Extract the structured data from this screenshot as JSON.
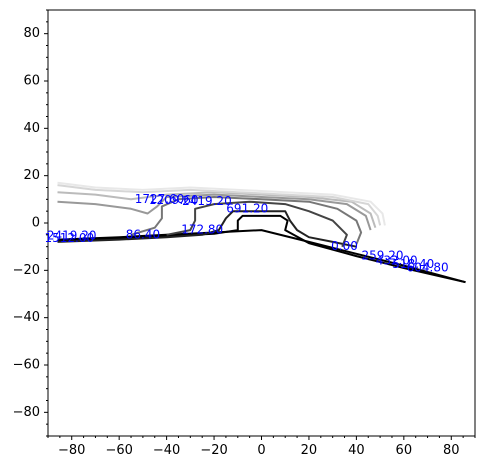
{
  "chart_data": {
    "type": "contour",
    "title": "",
    "xlabel": "",
    "ylabel": "",
    "xlim": [
      -90,
      90
    ],
    "ylim": [
      -90,
      90
    ],
    "grid": false,
    "x_ticks": [
      "−80",
      "−60",
      "−40",
      "−20",
      "0",
      "20",
      "40",
      "60",
      "80"
    ],
    "y_ticks": [
      "80",
      "60",
      "40",
      "20",
      "0",
      "−20",
      "−40",
      "−60",
      "−80"
    ],
    "x_tick_values": [
      -80,
      -60,
      -40,
      -20,
      0,
      20,
      40,
      60,
      80
    ],
    "y_tick_values": [
      80,
      60,
      40,
      20,
      0,
      -20,
      -40,
      -60,
      -80
    ],
    "contour_colors": [
      "#000000",
      "#222222",
      "#444444",
      "#777777",
      "#999999",
      "#bbbbbb",
      "#d6d6d6",
      "#e8e8e8"
    ],
    "contours": [
      {
        "color": "#000000",
        "points": [
          [
            -86,
            -7
          ],
          [
            -60,
            -6
          ],
          [
            -40,
            -5
          ],
          [
            -20,
            -4
          ],
          [
            0,
            -3
          ],
          [
            20,
            -8
          ],
          [
            40,
            -13
          ],
          [
            60,
            -18
          ],
          [
            86,
            -25
          ]
        ]
      },
      {
        "color": "#000000",
        "points": [
          [
            -86,
            -7.5
          ],
          [
            -60,
            -6.5
          ],
          [
            -40,
            -5.5
          ],
          [
            -20,
            -4.5
          ],
          [
            -10,
            -3
          ],
          [
            -10,
            1
          ],
          [
            -8,
            3
          ],
          [
            0,
            3
          ],
          [
            8,
            3
          ],
          [
            11,
            1
          ],
          [
            10,
            -3
          ],
          [
            20,
            -8.5
          ],
          [
            40,
            -14
          ],
          [
            60,
            -19
          ],
          [
            86,
            -25
          ]
        ]
      },
      {
        "color": "#222222",
        "points": [
          [
            -86,
            -8
          ],
          [
            -60,
            -7
          ],
          [
            -40,
            -6
          ],
          [
            -25,
            -5
          ],
          [
            -18,
            -3
          ],
          [
            -15,
            2
          ],
          [
            -12,
            5
          ],
          [
            0,
            5
          ],
          [
            10,
            5
          ],
          [
            12,
            1
          ],
          [
            15,
            -3
          ],
          [
            20,
            -6
          ],
          [
            30,
            -8
          ],
          [
            40,
            -10
          ]
        ]
      },
      {
        "color": "#444444",
        "points": [
          [
            -40,
            -5
          ],
          [
            -30,
            -3
          ],
          [
            -28,
            1
          ],
          [
            -28,
            6
          ],
          [
            -20,
            8
          ],
          [
            -5,
            9
          ],
          [
            10,
            8
          ],
          [
            20,
            5
          ],
          [
            30,
            1
          ],
          [
            36,
            -5
          ],
          [
            34,
            -10
          ]
        ]
      },
      {
        "color": "#777777",
        "points": [
          [
            -55,
            -5
          ],
          [
            -45,
            -2
          ],
          [
            -42,
            2
          ],
          [
            -42,
            7
          ],
          [
            -35,
            10
          ],
          [
            -20,
            11
          ],
          [
            0,
            10
          ],
          [
            20,
            9
          ],
          [
            32,
            6
          ],
          [
            40,
            1
          ],
          [
            42,
            -4
          ],
          [
            40,
            -9
          ]
        ]
      },
      {
        "color": "#999999",
        "points": [
          [
            -86,
            9
          ],
          [
            -70,
            8
          ],
          [
            -55,
            6
          ],
          [
            -48,
            4
          ],
          [
            -44,
            7
          ],
          [
            -40,
            11
          ],
          [
            -20,
            12
          ],
          [
            0,
            11
          ],
          [
            20,
            10
          ],
          [
            36,
            8
          ],
          [
            44,
            3
          ],
          [
            46,
            -3
          ]
        ]
      },
      {
        "color": "#bbbbbb",
        "points": [
          [
            -86,
            13
          ],
          [
            -70,
            12
          ],
          [
            -55,
            10
          ],
          [
            -40,
            12
          ],
          [
            -20,
            13
          ],
          [
            0,
            12
          ],
          [
            20,
            11
          ],
          [
            38,
            9
          ],
          [
            46,
            4
          ],
          [
            48,
            -2
          ]
        ]
      },
      {
        "color": "#d6d6d6",
        "points": [
          [
            -86,
            16
          ],
          [
            -70,
            14
          ],
          [
            -50,
            13
          ],
          [
            -30,
            14
          ],
          [
            -10,
            13
          ],
          [
            10,
            12
          ],
          [
            30,
            11
          ],
          [
            45,
            8
          ],
          [
            49,
            3
          ],
          [
            50,
            -1
          ]
        ]
      },
      {
        "color": "#e8e8e8",
        "points": [
          [
            -86,
            17
          ],
          [
            -70,
            15
          ],
          [
            -50,
            14
          ],
          [
            -30,
            15
          ],
          [
            -10,
            14
          ],
          [
            10,
            13
          ],
          [
            30,
            12
          ],
          [
            46,
            9
          ],
          [
            51,
            4
          ],
          [
            52,
            -1
          ]
        ]
      }
    ],
    "contour_labels": [
      {
        "text": "2419.20",
        "x": -23,
        "y": 9
      },
      {
        "text": "1727.60",
        "x": -43,
        "y": 10
      },
      {
        "text": "1209.60",
        "x": -37,
        "y": 9.5
      },
      {
        "text": "691.20",
        "x": -6,
        "y": 6
      },
      {
        "text": "172.80",
        "x": -25,
        "y": -3
      },
      {
        "text": "86.40",
        "x": -50,
        "y": -5
      },
      {
        "text": "2419.20",
        "x": -80,
        "y": -5.5
      },
      {
        "text": "1512.00",
        "x": -81,
        "y": -6.5
      },
      {
        "text": "0.00",
        "x": 35,
        "y": -10
      },
      {
        "text": "259.20",
        "x": 51,
        "y": -14
      },
      {
        "text": "432.00",
        "x": 57,
        "y": -16
      },
      {
        "text": "518.40",
        "x": 64,
        "y": -17.5
      },
      {
        "text": "604.80",
        "x": 70,
        "y": -19
      }
    ]
  }
}
